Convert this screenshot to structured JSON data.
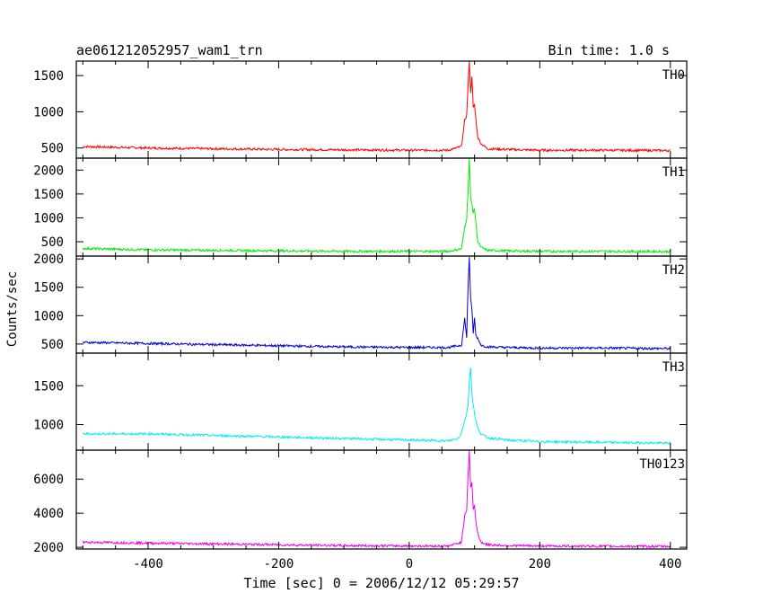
{
  "chart_data": {
    "type": "line",
    "title": "ae061212052957_wam1_trn",
    "subtitle": "Bin time: 1.0 s",
    "xlabel": "Time [sec] 0 = 2006/12/12 05:29:57",
    "ylabel": "Counts/sec",
    "xlim": [
      -510,
      425
    ],
    "x_ticks": [
      -400,
      -200,
      0,
      200,
      400
    ],
    "grid": false,
    "panels": [
      {
        "name": "TH0",
        "color": "#ff0000",
        "ylim": [
          360,
          1700
        ],
        "y_ticks": [
          500,
          1000,
          1500
        ],
        "x": [
          -500,
          -400,
          -300,
          -200,
          -100,
          0,
          60,
          80,
          85,
          88,
          90,
          92,
          94,
          96,
          98,
          100,
          102,
          105,
          110,
          120,
          150,
          200,
          300,
          400
        ],
        "y": [
          520,
          500,
          490,
          480,
          475,
          470,
          470,
          520,
          880,
          950,
          1350,
          1720,
          1250,
          1500,
          1050,
          1100,
          900,
          650,
          560,
          490,
          480,
          470,
          470,
          465
        ]
      },
      {
        "name": "TH1",
        "color": "#00ee00",
        "ylim": [
          200,
          2250
        ],
        "y_ticks": [
          500,
          1000,
          1500,
          2000
        ],
        "x": [
          -500,
          -400,
          -300,
          -200,
          -100,
          0,
          60,
          80,
          85,
          88,
          90,
          92,
          94,
          96,
          98,
          100,
          102,
          105,
          110,
          120,
          150,
          200,
          300,
          400
        ],
        "y": [
          360,
          330,
          320,
          310,
          300,
          300,
          300,
          350,
          800,
          1000,
          1550,
          2250,
          1400,
          1300,
          1100,
          1200,
          900,
          500,
          380,
          320,
          310,
          300,
          300,
          295
        ]
      },
      {
        "name": "TH2",
        "color": "#0000cc",
        "ylim": [
          340,
          2050
        ],
        "y_ticks": [
          500,
          1000,
          1500,
          2000
        ],
        "x": [
          -500,
          -400,
          -300,
          -200,
          -100,
          0,
          60,
          80,
          85,
          88,
          90,
          92,
          94,
          96,
          98,
          100,
          102,
          105,
          110,
          120,
          150,
          200,
          300,
          400
        ],
        "y": [
          530,
          510,
          490,
          470,
          450,
          440,
          440,
          480,
          950,
          600,
          1500,
          2040,
          1300,
          1100,
          700,
          950,
          650,
          600,
          480,
          450,
          440,
          430,
          430,
          420
        ]
      },
      {
        "name": "TH3",
        "color": "#00eeee",
        "ylim": [
          670,
          1920
        ],
        "y_ticks": [
          1000,
          1500
        ],
        "x": [
          -500,
          -400,
          -300,
          -200,
          -100,
          0,
          60,
          75,
          80,
          85,
          88,
          90,
          92,
          94,
          96,
          98,
          100,
          102,
          105,
          110,
          120,
          150,
          200,
          300,
          400
        ],
        "y": [
          880,
          880,
          860,
          840,
          820,
          800,
          790,
          820,
          900,
          1050,
          1150,
          1250,
          1550,
          1750,
          1400,
          1250,
          1150,
          1050,
          950,
          880,
          830,
          800,
          780,
          770,
          760
        ]
      },
      {
        "name": "TH0123",
        "color": "#ee00ee",
        "ylim": [
          1900,
          7700
        ],
        "y_ticks": [
          2000,
          4000,
          6000
        ],
        "x": [
          -500,
          -400,
          -300,
          -200,
          -100,
          0,
          60,
          80,
          85,
          88,
          90,
          92,
          94,
          96,
          98,
          100,
          102,
          105,
          110,
          120,
          150,
          200,
          300,
          400
        ],
        "y": [
          2300,
          2250,
          2200,
          2150,
          2100,
          2080,
          2070,
          2300,
          3900,
          4200,
          6200,
          7700,
          5500,
          5800,
          4200,
          4500,
          3500,
          2800,
          2300,
          2150,
          2100,
          2080,
          2060,
          2050
        ]
      }
    ]
  }
}
